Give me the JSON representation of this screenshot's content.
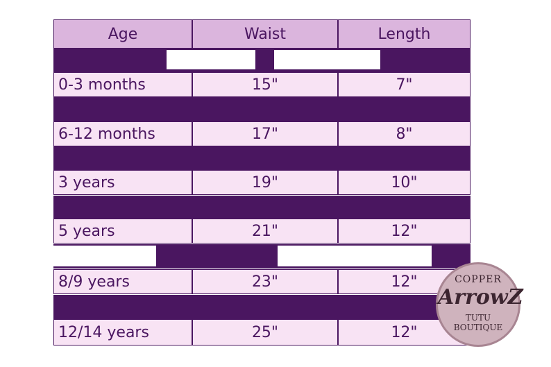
{
  "table": {
    "header": [
      "Age",
      "Waist",
      "Length"
    ],
    "rows": [
      [
        "0-3 months",
        "15\"",
        "7\""
      ],
      [
        "6-12 months",
        "17\"",
        "8\""
      ],
      [
        "3 years",
        "19\"",
        "10\""
      ],
      [
        "5 years",
        "21\"",
        "12\""
      ],
      [
        "8/9 years",
        "23\"",
        "12\""
      ],
      [
        "12/14 years",
        "25\"",
        "12\""
      ]
    ]
  },
  "logo": {
    "top": "COPPER",
    "main": "ArrowZ",
    "sub1": "TUTU",
    "sub2": "BOUTIQUE"
  }
}
